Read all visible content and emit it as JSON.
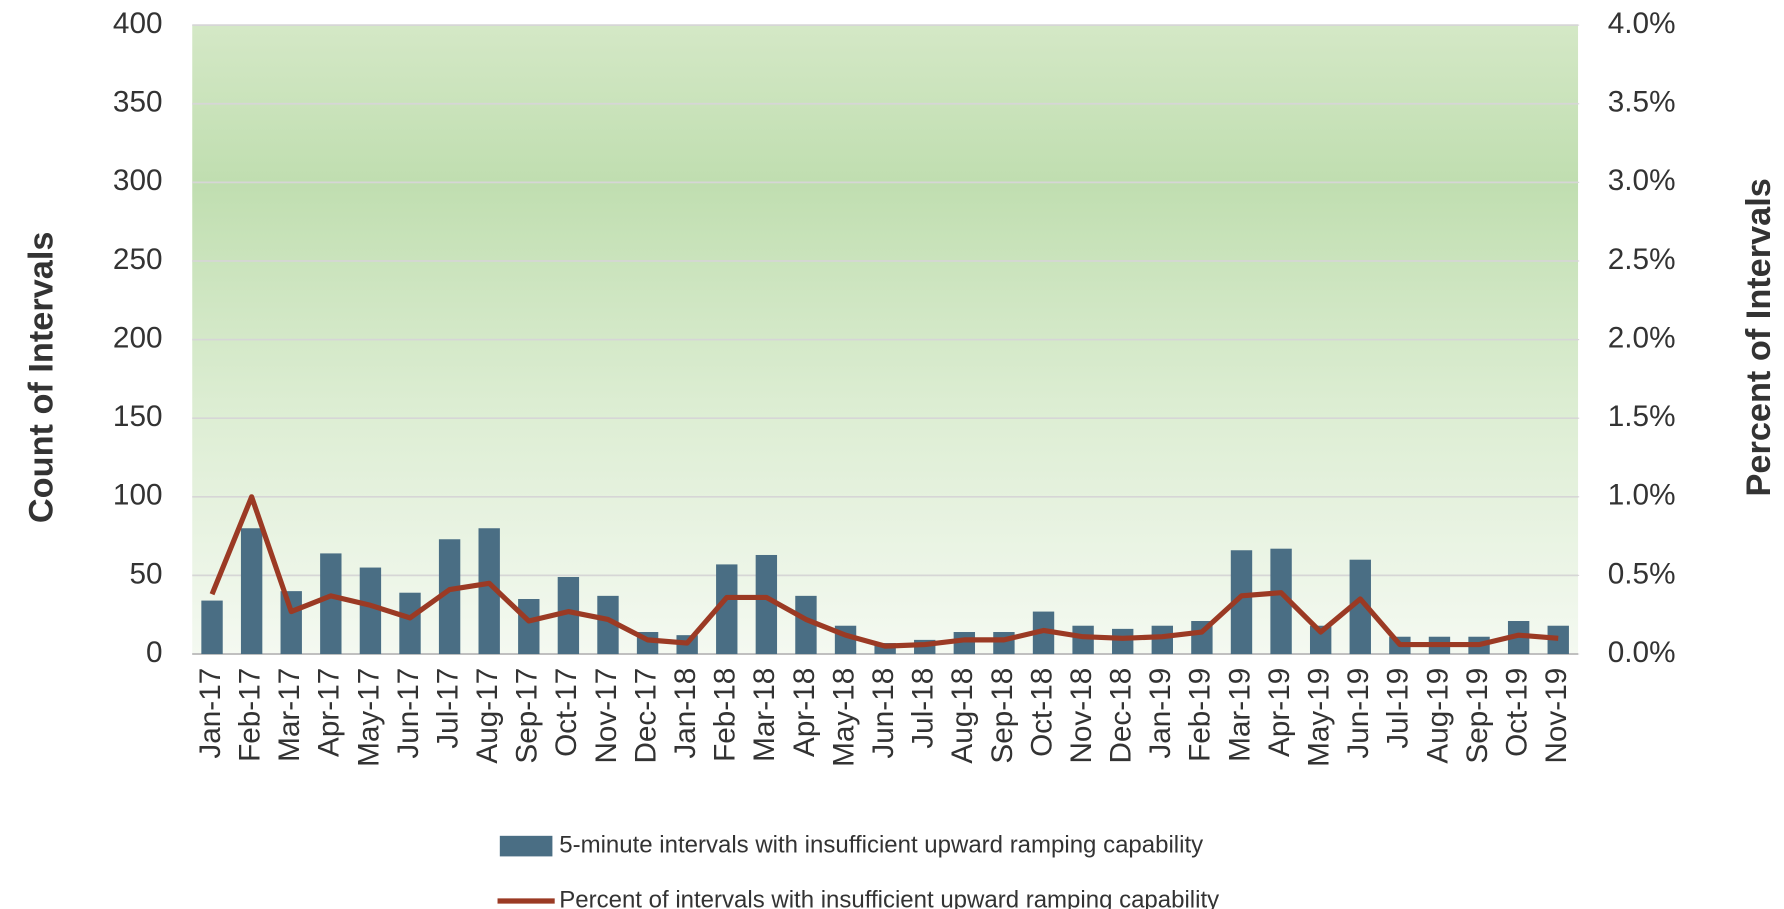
{
  "chart_data": {
    "type": "bar_line",
    "categories": [
      "Jan-17",
      "Feb-17",
      "Mar-17",
      "Apr-17",
      "May-17",
      "Jun-17",
      "Jul-17",
      "Aug-17",
      "Sep-17",
      "Oct-17",
      "Nov-17",
      "Dec-17",
      "Jan-18",
      "Feb-18",
      "Mar-18",
      "Apr-18",
      "May-18",
      "Jun-18",
      "Jul-18",
      "Aug-18",
      "Sep-18",
      "Oct-18",
      "Nov-18",
      "Dec-18",
      "Jan-19",
      "Feb-19",
      "Mar-19",
      "Apr-19",
      "May-19",
      "Jun-19",
      "Jul-19",
      "Aug-19",
      "Sep-19",
      "Oct-19",
      "Nov-19"
    ],
    "series": [
      {
        "name": "5-minute intervals with insufficient upward ramping capability",
        "type": "bar",
        "color": "#4a6e84",
        "values": [
          34,
          80,
          40,
          64,
          55,
          39,
          73,
          80,
          35,
          49,
          37,
          14,
          12,
          57,
          63,
          37,
          18,
          7,
          9,
          14,
          14,
          27,
          18,
          16,
          18,
          21,
          66,
          67,
          18,
          60,
          11,
          11,
          11,
          21,
          18
        ]
      },
      {
        "name": "Percent of intervals with insufficient upward ramping capability",
        "type": "line",
        "axis": "y2",
        "color": "#9b3a24",
        "values": [
          0.38,
          1.0,
          0.27,
          0.37,
          0.31,
          0.23,
          0.41,
          0.45,
          0.21,
          0.27,
          0.22,
          0.09,
          0.07,
          0.36,
          0.36,
          0.22,
          0.12,
          0.05,
          0.06,
          0.09,
          0.09,
          0.15,
          0.11,
          0.1,
          0.11,
          0.14,
          0.37,
          0.39,
          0.14,
          0.35,
          0.06,
          0.06,
          0.06,
          0.12,
          0.1
        ]
      }
    ],
    "y_label": "Count of Intervals",
    "y2_label": "Percent of Intervals",
    "ylim": [
      0,
      400
    ],
    "yticks": [
      0,
      50,
      100,
      150,
      200,
      250,
      300,
      350,
      400
    ],
    "y2lim": [
      0,
      4
    ],
    "y2ticks": [
      {
        "value": 0,
        "label": "0.0%"
      },
      {
        "value": 0.5,
        "label": "0.5%"
      },
      {
        "value": 1,
        "label": "1.0%"
      },
      {
        "value": 1.5,
        "label": "1.5%"
      },
      {
        "value": 2,
        "label": "2.0%"
      },
      {
        "value": 2.5,
        "label": "2.5%"
      },
      {
        "value": 3,
        "label": "3.0%"
      },
      {
        "value": 3.5,
        "label": "3.5%"
      },
      {
        "value": 4,
        "label": "4.0%"
      }
    ],
    "grid": true,
    "legend": "bottom"
  }
}
